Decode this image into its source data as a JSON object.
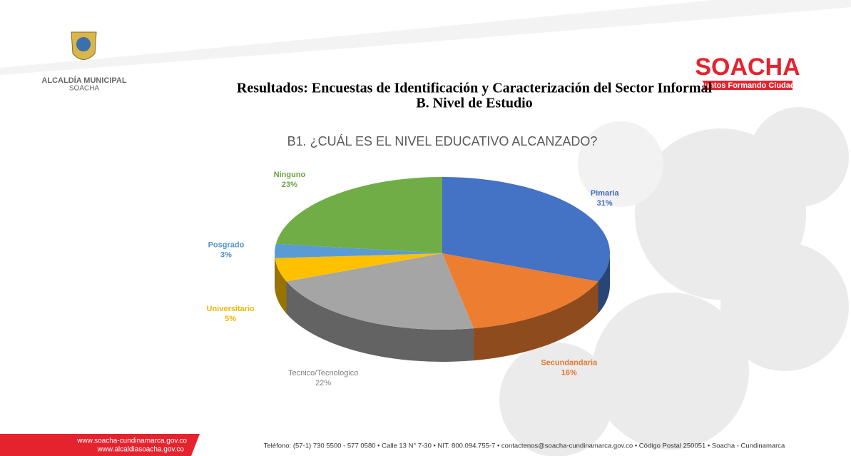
{
  "header": {
    "logo_text": [
      "ALCALDÍA MUNICIPAL",
      "SOACHA"
    ],
    "brand": "SOACHA",
    "slogan": "Juntos Formando Ciudad",
    "title": [
      "Resultados: Encuestas de Identificación y Caracterización del Sector Informal",
      "B. Nivel de Estudio"
    ]
  },
  "chart_data": {
    "type": "pie",
    "title": "B1. ¿CUÁL ES EL NIVEL EDUCATIVO ALCANZADO?",
    "categories": [
      "Pimaria",
      "Secundandaria",
      "Tecnico/Tecnologico",
      "Universitario",
      "Posgrado",
      "Ninguno"
    ],
    "values": [
      31,
      16,
      22,
      5,
      3,
      23
    ],
    "value_labels": [
      "31%",
      "16%",
      "22%",
      "5%",
      "3%",
      "23%"
    ],
    "colors": [
      "#4472c4",
      "#ed7d31",
      "#a5a5a5",
      "#ffc000",
      "#5b9bd5",
      "#70ad47"
    ]
  },
  "footer": {
    "websites": [
      "www.soacha-cundinamarca.gov.co",
      "www.alcaldiasoacha.gov.co"
    ],
    "contact": "Teléfono: (57-1) 730 5500 - 577 0580 • Calle 13 N° 7-30 • NIT. 800.094.755-7 • contactenos@soacha-cundinamarca.gov.co • Código Postal 250051 • Soacha - Cundinamarca"
  }
}
